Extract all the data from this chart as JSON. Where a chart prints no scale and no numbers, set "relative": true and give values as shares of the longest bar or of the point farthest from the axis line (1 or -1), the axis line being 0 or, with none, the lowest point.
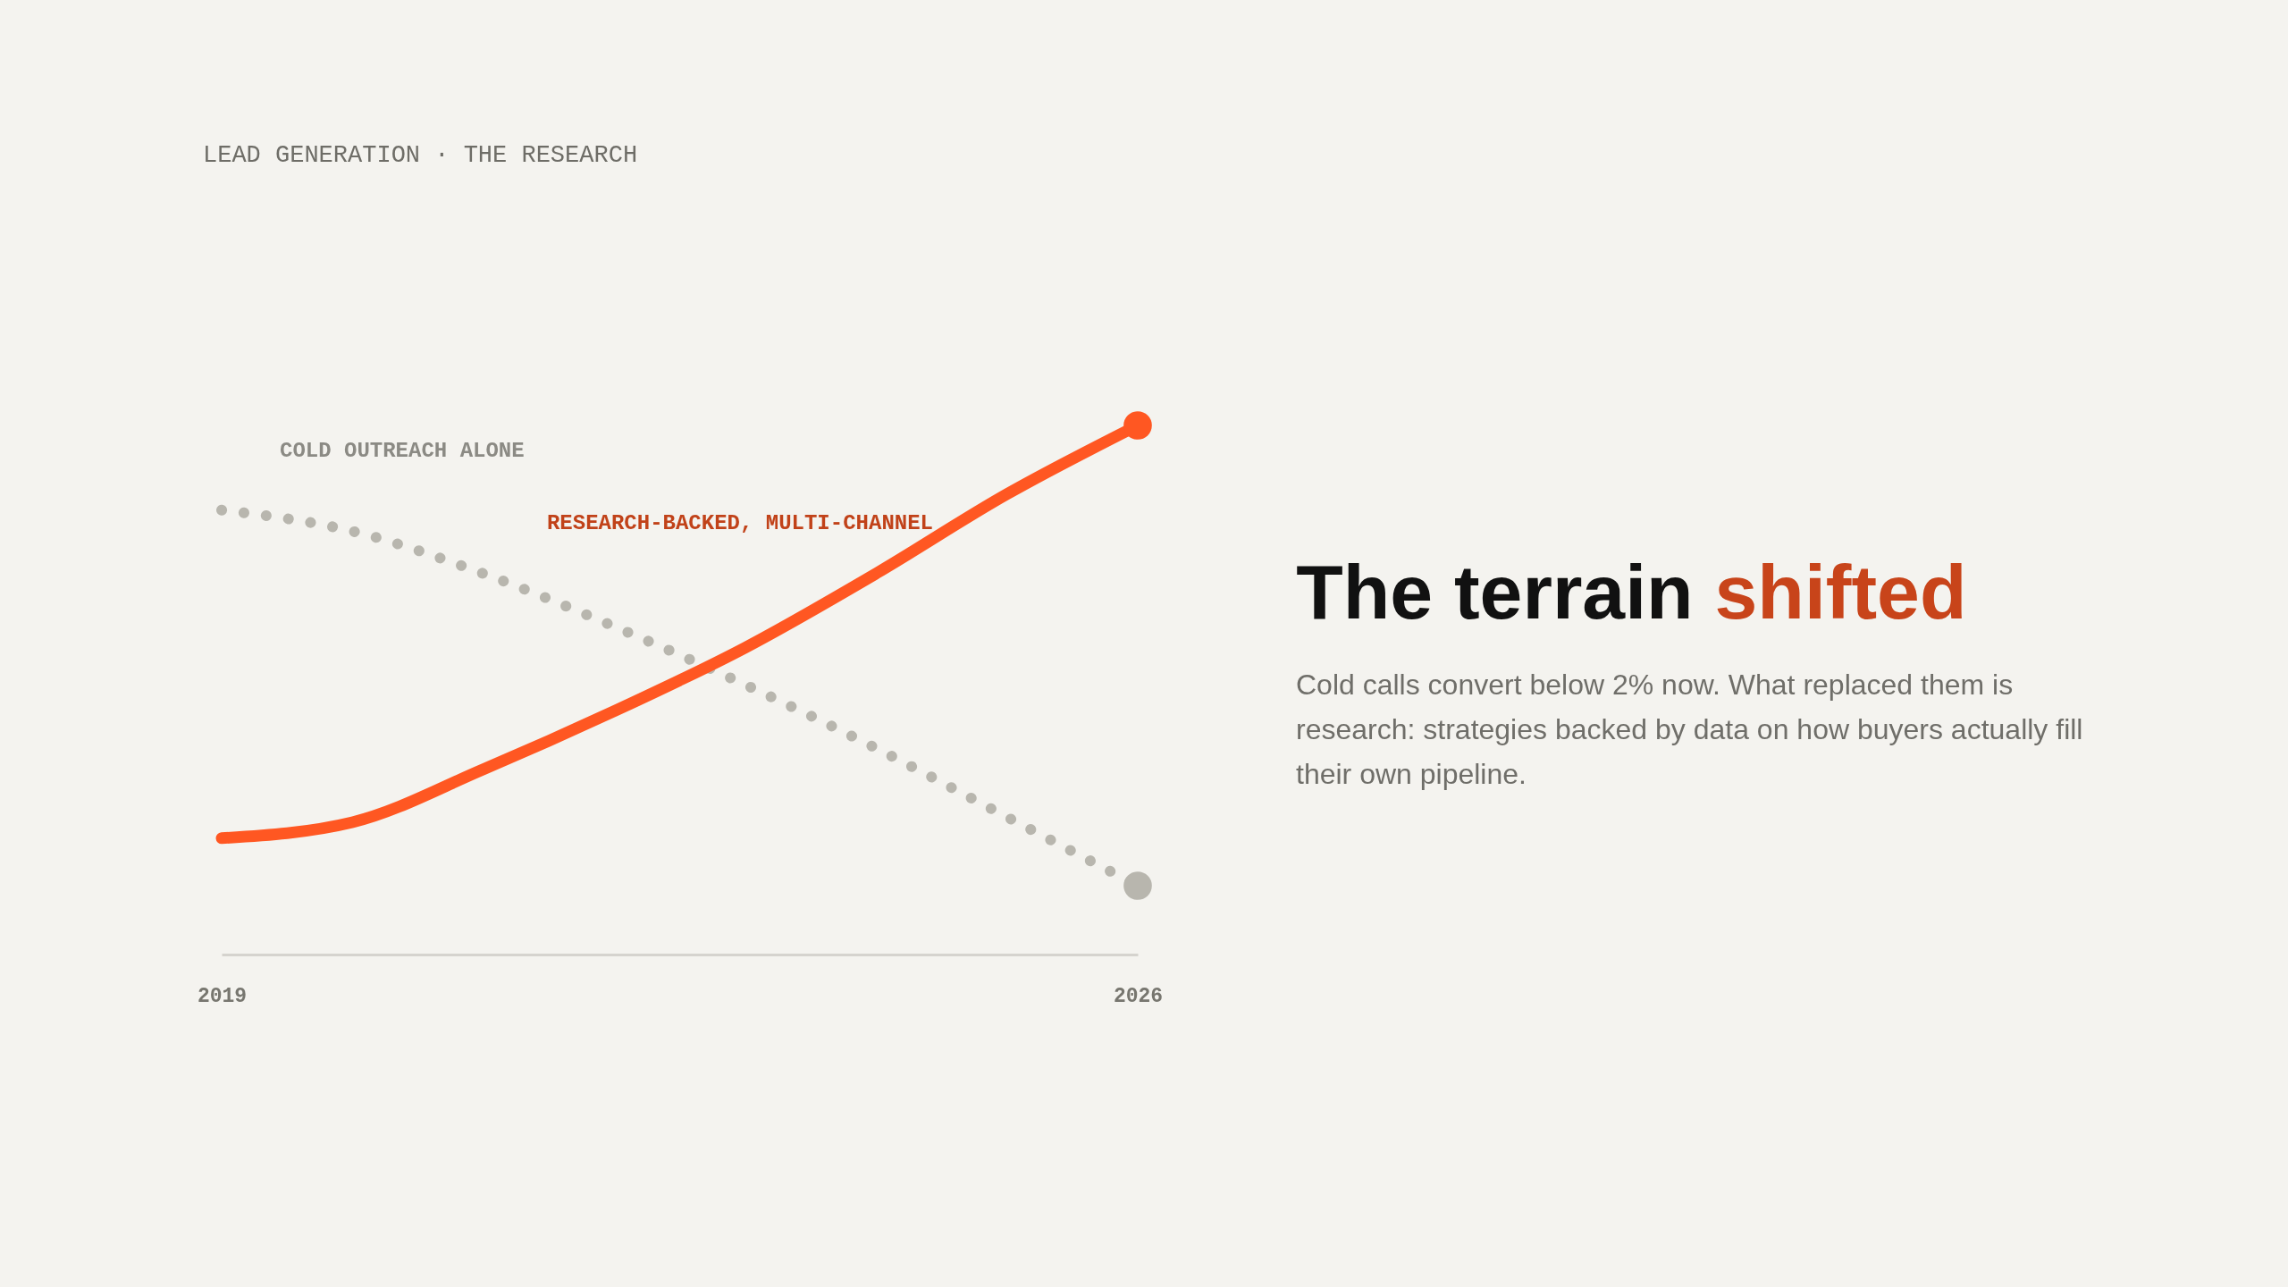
{
  "chart_data": {
    "type": "line",
    "relative": true,
    "title": "The terrain shifted",
    "subtitle": "Cold calls convert below 2% now. What replaced them is research: strategies backed by data on how buyers actually fill their own pipeline.",
    "annotations": [
      "LEAD GENERATION · THE RESEARCH"
    ],
    "x": [
      2019,
      2020,
      2021,
      2022,
      2023,
      2024,
      2025,
      2026
    ],
    "xlim": [
      2019,
      2026
    ],
    "xticks": [
      2019,
      2026
    ],
    "series": [
      {
        "name": "COLD OUTREACH ALONE",
        "color": "#b8b6ae",
        "line_style": "dotted",
        "values": [
          0.84,
          0.8,
          0.72,
          0.62,
          0.51,
          0.39,
          0.26,
          0.13
        ]
      },
      {
        "name": "RESEARCH-BACKED, MULTI-CHANNEL",
        "color": "#ff5722",
        "line_style": "solid",
        "values": [
          0.22,
          0.25,
          0.35,
          0.46,
          0.58,
          0.72,
          0.87,
          1.0
        ]
      },
      {
        "type": "scatter",
        "color": "#b8b6ae",
        "marker": "circle",
        "x": [
          2026
        ],
        "values": [
          0.13
        ]
      },
      {
        "type": "scatter",
        "color": "#ff5722",
        "marker": "circle",
        "x": [
          2026
        ],
        "values": [
          1.0
        ]
      }
    ]
  }
}
